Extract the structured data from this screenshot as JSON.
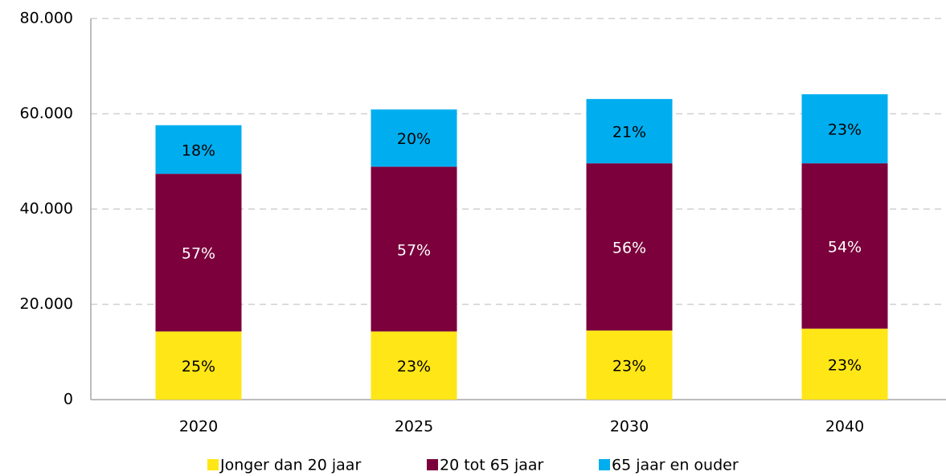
{
  "chart_data": {
    "type": "stacked_bar",
    "categories": [
      "2020",
      "2025",
      "2030",
      "2040"
    ],
    "series": [
      {
        "name": "Jonger dan 20 jaar",
        "color": "#ffe616",
        "values": [
          14300,
          14300,
          14500,
          14900
        ],
        "share_labels": [
          "25%",
          "23%",
          "23%",
          "23%"
        ],
        "label_color": "#000000"
      },
      {
        "name": "20 tot 65 jaar",
        "color": "#7b003c",
        "values": [
          33100,
          34600,
          35100,
          34700
        ],
        "share_labels": [
          "57%",
          "57%",
          "56%",
          "54%"
        ],
        "label_color": "#ffffff"
      },
      {
        "name": "65 jaar en ouder",
        "color": "#00aeef",
        "values": [
          10200,
          12000,
          13500,
          14500
        ],
        "share_labels": [
          "18%",
          "20%",
          "21%",
          "23%"
        ],
        "label_color": "#000000"
      }
    ],
    "ylim": [
      0,
      80000
    ],
    "yticks": [
      0,
      {
        "value": 20000,
        "label": "20.000"
      },
      {
        "value": 40000,
        "label": "40.000"
      },
      {
        "value": 60000,
        "label": "60.000"
      },
      {
        "value": 80000,
        "label": "80.000"
      }
    ],
    "grid": true,
    "legend": "bottom"
  }
}
